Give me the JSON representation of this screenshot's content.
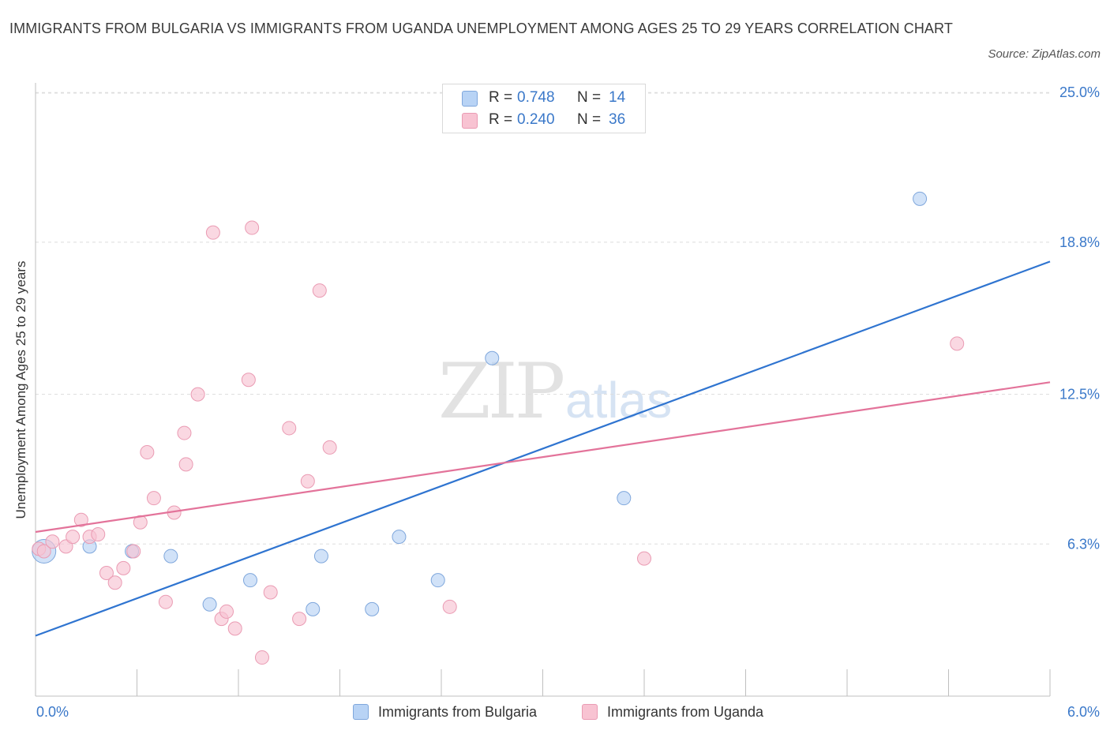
{
  "title": "IMMIGRANTS FROM BULGARIA VS IMMIGRANTS FROM UGANDA UNEMPLOYMENT AMONG AGES 25 TO 29 YEARS CORRELATION CHART",
  "source": "Source: ZipAtlas.com",
  "watermark": {
    "zip": "ZIP",
    "atlas": "atlas"
  },
  "legend_top": {
    "rows": [
      {
        "r_label": "R =",
        "r_value": "0.748",
        "n_label": "N =",
        "n_value": "14"
      },
      {
        "r_label": "R =",
        "r_value": "0.240",
        "n_label": "N =",
        "n_value": "36"
      }
    ]
  },
  "colors": {
    "bulgaria_fill": "#b8d3f5",
    "bulgaria_stroke": "#7fa7dc",
    "bulgaria_line": "#2f74d0",
    "uganda_fill": "#f8c3d2",
    "uganda_stroke": "#ea9bb3",
    "uganda_line": "#e3739a",
    "accent_text": "#3a78c9",
    "grid": "#dddddd"
  },
  "chart_data": {
    "type": "scatter",
    "title": "IMMIGRANTS FROM BULGARIA VS IMMIGRANTS FROM UGANDA UNEMPLOYMENT AMONG AGES 25 TO 29 YEARS CORRELATION CHART",
    "xlabel": "",
    "ylabel": "Unemployment Among Ages 25 to 29 years",
    "xlim": [
      0,
      6
    ],
    "ylim": [
      0,
      25.4
    ],
    "x_tick_labels": [
      "0.0%",
      "6.0%"
    ],
    "y_ticks": [
      6.3,
      12.5,
      18.8,
      25.0
    ],
    "y_tick_labels": [
      "6.3%",
      "12.5%",
      "18.8%",
      "25.0%"
    ],
    "grid": true,
    "legend_position": "bottom",
    "series": [
      {
        "name": "Immigrants from Bulgaria",
        "color": "#b8d3f5",
        "points": [
          [
            0.05,
            6.0
          ],
          [
            0.32,
            6.2
          ],
          [
            0.57,
            6.0
          ],
          [
            0.8,
            5.8
          ],
          [
            1.03,
            3.8
          ],
          [
            1.27,
            4.8
          ],
          [
            1.64,
            3.6
          ],
          [
            1.69,
            5.8
          ],
          [
            1.99,
            3.6
          ],
          [
            2.15,
            6.6
          ],
          [
            2.38,
            4.8
          ],
          [
            2.7,
            14.0
          ],
          [
            3.48,
            8.2
          ],
          [
            5.23,
            20.6
          ]
        ],
        "trend": [
          [
            0,
            2.5
          ],
          [
            6,
            18.0
          ]
        ]
      },
      {
        "name": "Immigrants from Uganda",
        "color": "#f8c3d2",
        "points": [
          [
            0.02,
            6.1
          ],
          [
            0.05,
            6.0
          ],
          [
            0.1,
            6.4
          ],
          [
            0.18,
            6.2
          ],
          [
            0.27,
            7.3
          ],
          [
            0.22,
            6.6
          ],
          [
            0.32,
            6.6
          ],
          [
            0.37,
            6.7
          ],
          [
            0.42,
            5.1
          ],
          [
            0.47,
            4.7
          ],
          [
            0.52,
            5.3
          ],
          [
            0.58,
            6.0
          ],
          [
            0.62,
            7.2
          ],
          [
            0.66,
            10.1
          ],
          [
            0.7,
            8.2
          ],
          [
            0.77,
            3.9
          ],
          [
            0.82,
            7.6
          ],
          [
            0.88,
            10.9
          ],
          [
            0.89,
            9.6
          ],
          [
            0.96,
            12.5
          ],
          [
            1.05,
            19.2
          ],
          [
            1.1,
            3.2
          ],
          [
            1.13,
            3.5
          ],
          [
            1.18,
            2.8
          ],
          [
            1.26,
            13.1
          ],
          [
            1.28,
            19.4
          ],
          [
            1.34,
            1.6
          ],
          [
            1.39,
            4.3
          ],
          [
            1.5,
            11.1
          ],
          [
            1.56,
            3.2
          ],
          [
            1.61,
            8.9
          ],
          [
            1.68,
            16.8
          ],
          [
            1.74,
            10.3
          ],
          [
            2.45,
            3.7
          ],
          [
            3.6,
            5.7
          ],
          [
            5.45,
            14.6
          ]
        ],
        "trend": [
          [
            0,
            6.8
          ],
          [
            6,
            13.0
          ]
        ]
      }
    ]
  },
  "legend_bottom": [
    {
      "label": "Immigrants from Bulgaria"
    },
    {
      "label": "Immigrants from Uganda"
    }
  ]
}
